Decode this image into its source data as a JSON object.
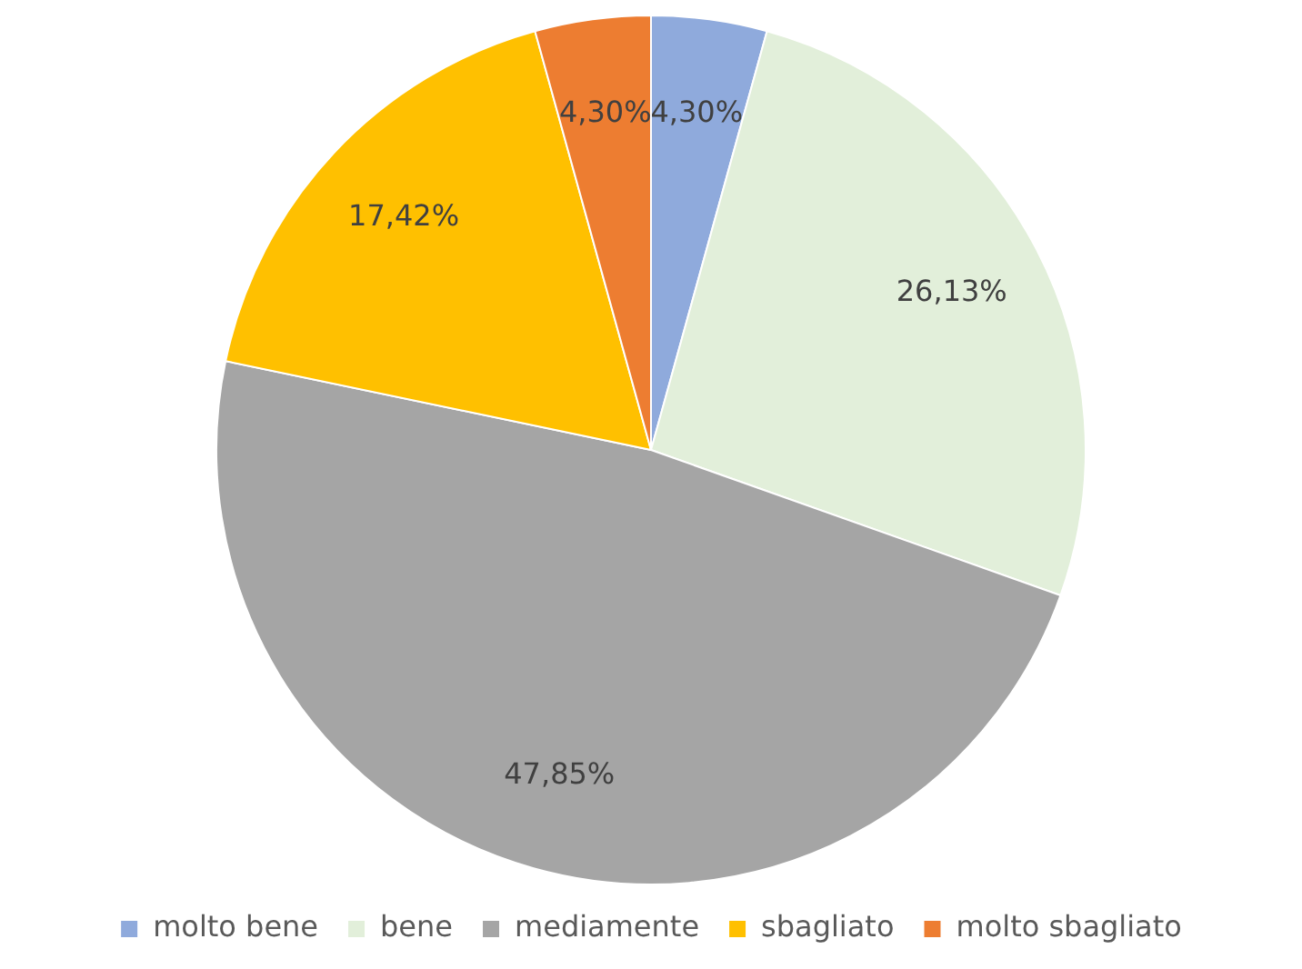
{
  "chart_data": {
    "type": "pie",
    "categories": [
      "molto bene",
      "bene",
      "mediamente",
      "sbagliato",
      "molto sbagliato"
    ],
    "values": [
      4.3,
      26.13,
      47.85,
      17.42,
      4.3
    ],
    "colors": [
      "#8faadc",
      "#e2efda",
      "#a5a5a5",
      "#ffc000",
      "#ed7d31"
    ],
    "value_labels": [
      "4,30%",
      "26,13%",
      "47,85%",
      "17,42%",
      "4,30%"
    ],
    "legend": "bottom"
  }
}
